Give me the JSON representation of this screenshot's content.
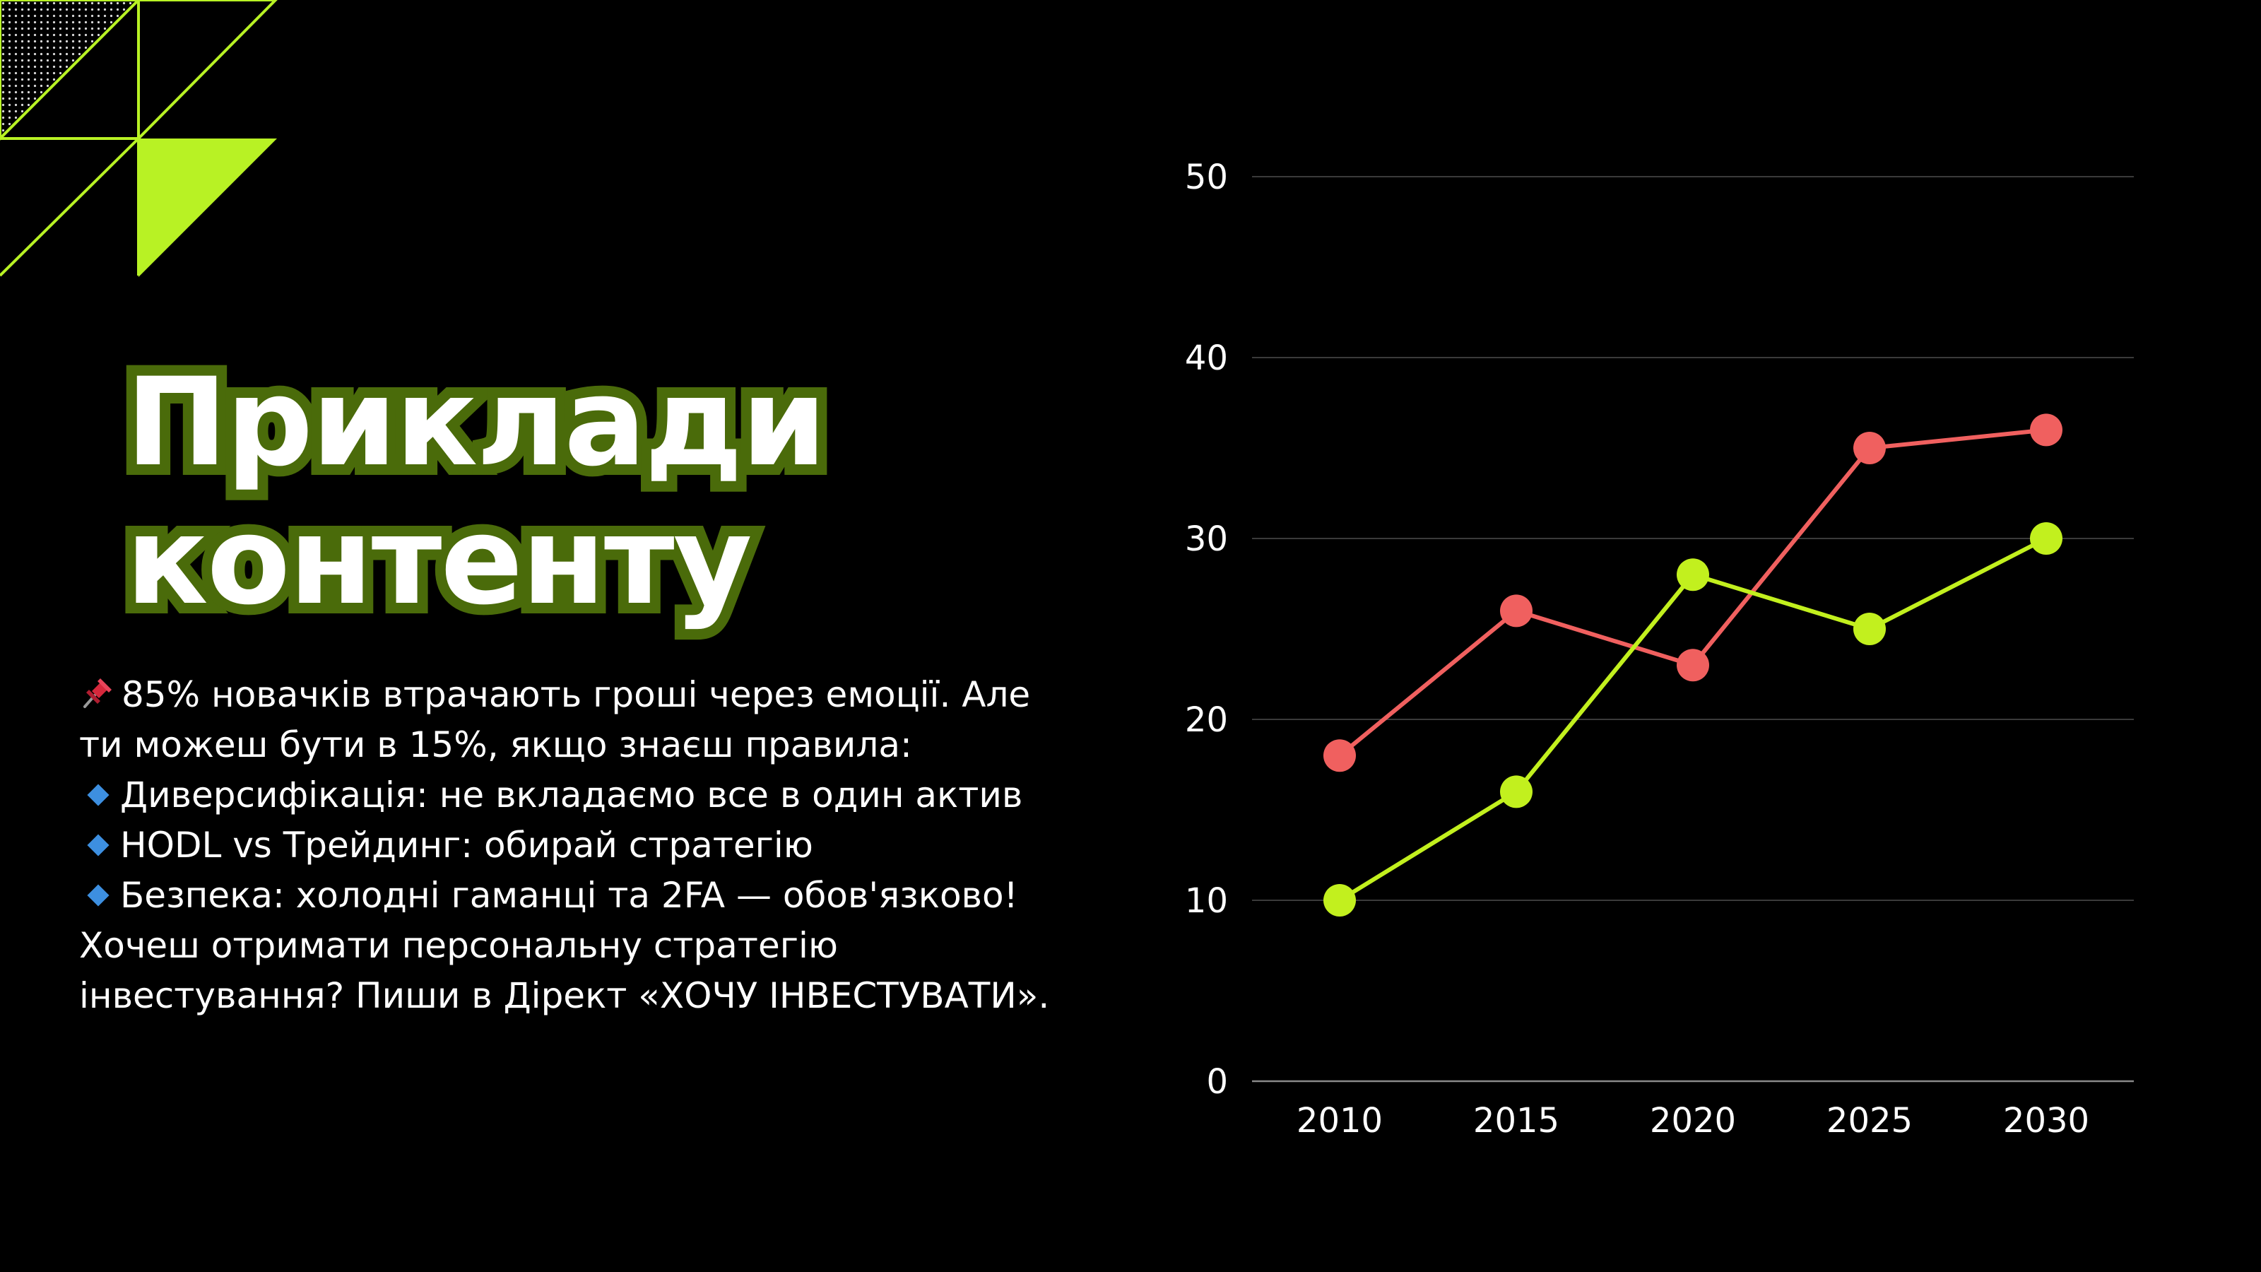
{
  "title": {
    "line1": "Приклади",
    "line2": "контенту"
  },
  "body": {
    "line1": "85% новачків втрачають гроші через емоції. Але",
    "line2": "ти можеш бути в 15%, якщо знаєш правила:",
    "bullet1": "Диверсифікація: не вкладаємо все в один актив",
    "bullet2": "HODL vs Трейдинг: обирай стратегію",
    "bullet3": "Безпека: холодні гаманці та 2FA — обов'язково!",
    "line3": "Хочеш отримати персональну стратегію",
    "line4": "інвестування? Пиши в Дірект «ХОЧУ ІНВЕСТУВАТИ».",
    "icons": [
      "pushpin-icon",
      "blue-diamond-icon"
    ]
  },
  "colors": {
    "background": "#000000",
    "accent": "#b8f224",
    "title_outline": "#4a6b0a",
    "series_red": "#f0605f",
    "series_green": "#c2f01e",
    "bullet": "#3d8fe0"
  },
  "chart_data": {
    "type": "line",
    "title": "",
    "xlabel": "",
    "ylabel": "",
    "categories": [
      "2010",
      "2015",
      "2020",
      "2025",
      "2030"
    ],
    "yticks": [
      0,
      10,
      20,
      30,
      40,
      50
    ],
    "ylim": [
      0,
      50
    ],
    "grid": true,
    "legend": "none",
    "series": [
      {
        "values": [
          18,
          26,
          23,
          35,
          36
        ],
        "color": "#f0605f"
      },
      {
        "values": [
          10,
          16,
          28,
          25,
          30
        ],
        "color": "#c2f01e"
      }
    ]
  }
}
